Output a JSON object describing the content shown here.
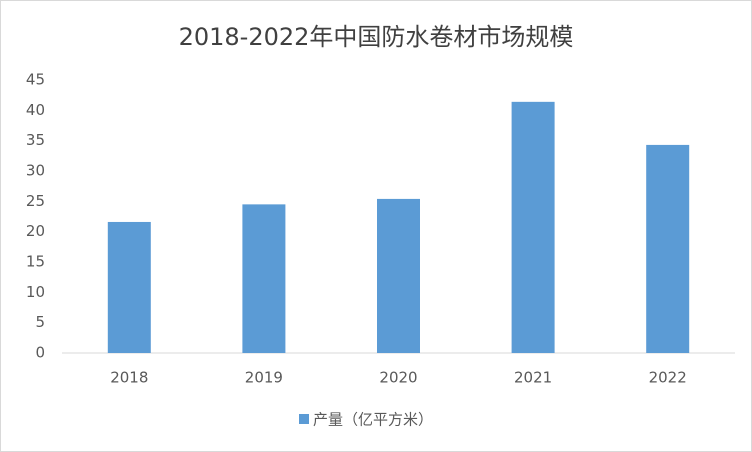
{
  "chart_data": {
    "type": "bar",
    "title": "2018-2022年中国防水卷材市场规模",
    "categories": [
      "2018",
      "2019",
      "2020",
      "2021",
      "2022"
    ],
    "series": [
      {
        "name": "产量（亿平方米）",
        "color": "#5b9bd5",
        "values": [
          21.6,
          24.5,
          25.4,
          41.4,
          34.3
        ]
      }
    ],
    "ylim": [
      0,
      45
    ],
    "yticks": [
      0,
      5,
      10,
      15,
      20,
      25,
      30,
      35,
      40,
      45
    ],
    "grid": false,
    "legend": "bottom"
  }
}
